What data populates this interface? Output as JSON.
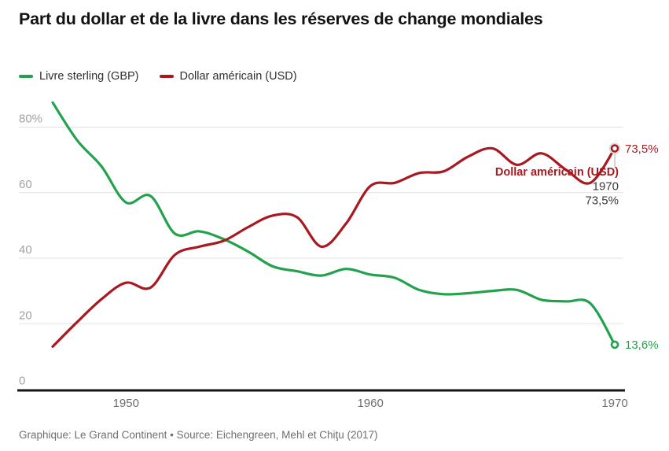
{
  "title": "Part du dollar et de la livre dans les réserves de change mondiales",
  "legend": [
    {
      "label": "Livre sterling (GBP)",
      "color": "#22a24c"
    },
    {
      "label": "Dollar américain (USD)",
      "color": "#a81a21"
    }
  ],
  "footer": "Graphique: Le Grand Continent • Source: Eichengreen, Mehl et Chiţu (2017)",
  "chart_data": {
    "type": "line",
    "title": "Part du dollar et de la livre dans les réserves de change mondiales",
    "x": [
      1947,
      1948,
      1949,
      1950,
      1951,
      1952,
      1953,
      1954,
      1955,
      1956,
      1957,
      1958,
      1959,
      1960,
      1961,
      1962,
      1963,
      1964,
      1965,
      1966,
      1967,
      1968,
      1969,
      1970
    ],
    "series": [
      {
        "name": "Livre sterling (GBP)",
        "color": "#22a24c",
        "values": [
          87.5,
          76,
          68,
          57,
          59,
          47.5,
          48.2,
          45.8,
          42,
          37.5,
          36,
          34.7,
          36.7,
          35,
          34,
          30.3,
          29,
          29.3,
          30,
          30.3,
          27.3,
          26.8,
          26.2,
          13.6
        ],
        "end_label": "13,6%"
      },
      {
        "name": "Dollar américain (USD)",
        "color": "#a81a21",
        "values": [
          13,
          20.5,
          27.5,
          32.5,
          31,
          41,
          43.5,
          45.3,
          49.5,
          53,
          52.5,
          43.5,
          50.5,
          62,
          63,
          66,
          66.5,
          71,
          73.5,
          68.5,
          72,
          67,
          63,
          73.5
        ],
        "end_label": "73,5%"
      }
    ],
    "x_ticks": [
      1950,
      1960,
      1970
    ],
    "x_tick_labels": [
      "1950",
      "1960",
      "1970"
    ],
    "y_ticks": [
      0,
      20,
      40,
      60,
      80
    ],
    "y_tick_labels": [
      "0",
      "20",
      "40",
      "60",
      "80%"
    ],
    "xlim": [
      1945.6,
      1970.4
    ],
    "ylim": [
      0,
      90
    ],
    "grid": "horizontal",
    "legend_position": "top",
    "annotation": {
      "series_label": "Dollar américain (USD)",
      "x_label": "1970",
      "value_label": "73,5%"
    },
    "colors": {
      "grid": "#e3e3e3",
      "axis": "#151515",
      "y_tick_text": "#a1a1a1",
      "x_tick_text": "#6e6e6e",
      "annotation_text": "#3c3c3c",
      "marker_stem": "#c6c6c6"
    }
  }
}
